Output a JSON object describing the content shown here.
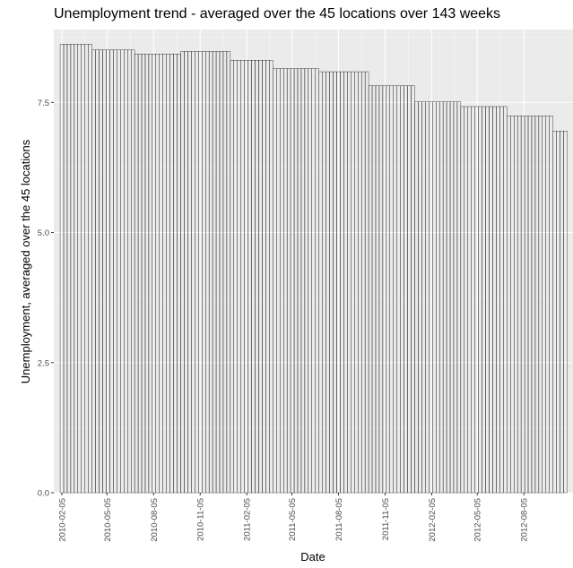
{
  "chart_data": {
    "type": "bar",
    "title": "Unemployment trend - averaged over the 45 locations over 143 weeks",
    "xlabel": "Date",
    "ylabel": "Unemployment, averaged over the 45 locations",
    "ylim": [
      0,
      8.9
    ],
    "yticks": [
      "0.0",
      "2.5",
      "5.0",
      "7.5"
    ],
    "ytick_values": [
      0,
      2.5,
      5.0,
      7.5
    ],
    "xticks": [
      "2010-02-05",
      "2010-05-05",
      "2010-08-05",
      "2010-11-05",
      "2011-02-05",
      "2011-05-05",
      "2011-08-05",
      "2011-11-05",
      "2012-02-05",
      "2012-05-05",
      "2012-08-05"
    ],
    "x_range": [
      "2010-01-20",
      "2012-11-10"
    ],
    "grid": true,
    "segments": [
      {
        "start": "2010-02-05",
        "end": "2010-04-02",
        "value": 8.62
      },
      {
        "start": "2010-04-09",
        "end": "2010-06-25",
        "value": 8.51
      },
      {
        "start": "2010-07-02",
        "end": "2010-09-24",
        "value": 8.43
      },
      {
        "start": "2010-10-01",
        "end": "2010-12-31",
        "value": 8.48
      },
      {
        "start": "2011-01-07",
        "end": "2011-03-25",
        "value": 8.31
      },
      {
        "start": "2011-04-01",
        "end": "2011-06-24",
        "value": 8.15
      },
      {
        "start": "2011-07-01",
        "end": "2011-09-30",
        "value": 8.09
      },
      {
        "start": "2011-10-07",
        "end": "2011-12-30",
        "value": 7.82
      },
      {
        "start": "2012-01-06",
        "end": "2012-03-30",
        "value": 7.51
      },
      {
        "start": "2012-04-06",
        "end": "2012-06-29",
        "value": 7.42
      },
      {
        "start": "2012-07-06",
        "end": "2012-09-28",
        "value": 7.24
      },
      {
        "start": "2012-10-05",
        "end": "2012-10-26",
        "value": 6.95
      }
    ],
    "colors": {
      "panel": "#ebebeb",
      "grid_major": "#ffffff",
      "bar": "#000000"
    }
  }
}
